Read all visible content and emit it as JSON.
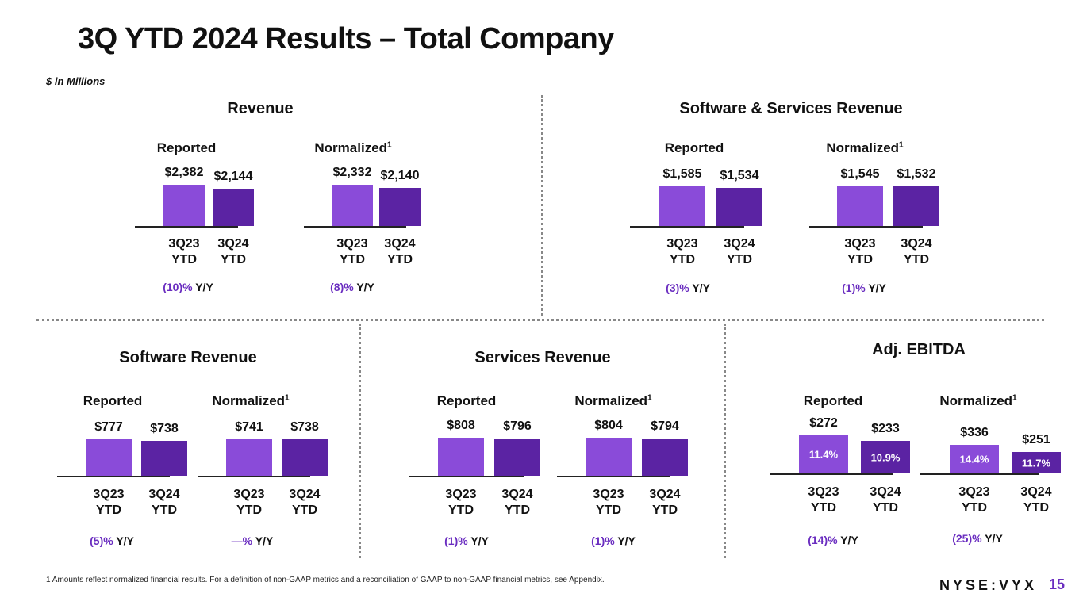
{
  "header": {
    "title": "3Q YTD 2024 Results – Total Company",
    "units": "$ in Millions"
  },
  "colors": {
    "prior": "#8a4bd9",
    "current": "#5b23a3",
    "accent": "#6a2dc0"
  },
  "chart_data": [
    {
      "type": "bar",
      "title": "Revenue",
      "panel": "Reported",
      "categories": [
        "3Q23 YTD",
        "3Q24 YTD"
      ],
      "values": [
        2382,
        2144
      ],
      "labels": [
        "$2,382",
        "$2,144"
      ],
      "yoy_value": "(10)%",
      "yoy_suffix": "Y/Y"
    },
    {
      "type": "bar",
      "title": "Revenue",
      "panel": "Normalized",
      "footnote_ref": "1",
      "categories": [
        "3Q23 YTD",
        "3Q24 YTD"
      ],
      "values": [
        2332,
        2140
      ],
      "labels": [
        "$2,332",
        "$2,140"
      ],
      "yoy_value": "(8)%",
      "yoy_suffix": "Y/Y"
    },
    {
      "type": "bar",
      "title": "Software & Services Revenue",
      "panel": "Reported",
      "categories": [
        "3Q23 YTD",
        "3Q24 YTD"
      ],
      "values": [
        1585,
        1534
      ],
      "labels": [
        "$1,585",
        "$1,534"
      ],
      "yoy_value": "(3)%",
      "yoy_suffix": "Y/Y"
    },
    {
      "type": "bar",
      "title": "Software & Services Revenue",
      "panel": "Normalized",
      "footnote_ref": "1",
      "categories": [
        "3Q23 YTD",
        "3Q24 YTD"
      ],
      "values": [
        1545,
        1532
      ],
      "labels": [
        "$1,545",
        "$1,532"
      ],
      "yoy_value": "(1)%",
      "yoy_suffix": "Y/Y"
    },
    {
      "type": "bar",
      "title": "Software Revenue",
      "panel": "Reported",
      "categories": [
        "3Q23 YTD",
        "3Q24 YTD"
      ],
      "values": [
        777,
        738
      ],
      "labels": [
        "$777",
        "$738"
      ],
      "yoy_value": "(5)%",
      "yoy_suffix": "Y/Y"
    },
    {
      "type": "bar",
      "title": "Software Revenue",
      "panel": "Normalized",
      "footnote_ref": "1",
      "categories": [
        "3Q23 YTD",
        "3Q24 YTD"
      ],
      "values": [
        741,
        738
      ],
      "labels": [
        "$741",
        "$738"
      ],
      "yoy_value": "—%",
      "yoy_suffix": "Y/Y"
    },
    {
      "type": "bar",
      "title": "Services Revenue",
      "panel": "Reported",
      "categories": [
        "3Q23 YTD",
        "3Q24 YTD"
      ],
      "values": [
        808,
        796
      ],
      "labels": [
        "$808",
        "$796"
      ],
      "yoy_value": "(1)%",
      "yoy_suffix": "Y/Y"
    },
    {
      "type": "bar",
      "title": "Services Revenue",
      "panel": "Normalized",
      "footnote_ref": "1",
      "categories": [
        "3Q23 YTD",
        "3Q24 YTD"
      ],
      "values": [
        804,
        794
      ],
      "labels": [
        "$804",
        "$794"
      ],
      "yoy_value": "(1)%",
      "yoy_suffix": "Y/Y"
    },
    {
      "type": "bar",
      "title": "Adj. EBITDA",
      "panel": "Reported",
      "categories": [
        "3Q23 YTD",
        "3Q24 YTD"
      ],
      "values": [
        272,
        233
      ],
      "labels": [
        "$272",
        "$233"
      ],
      "margins": [
        "11.4%",
        "10.9%"
      ],
      "yoy_value": "(14)%",
      "yoy_suffix": "Y/Y"
    },
    {
      "type": "bar",
      "title": "Adj. EBITDA",
      "panel": "Normalized",
      "footnote_ref": "1",
      "categories": [
        "3Q23 YTD",
        "3Q24 YTD"
      ],
      "values": [
        336,
        251
      ],
      "labels": [
        "$336",
        "$251"
      ],
      "margins": [
        "14.4%",
        "11.7%"
      ],
      "yoy_value": "(25)%",
      "yoy_suffix": "Y/Y"
    }
  ],
  "sections": [
    "Revenue",
    "Software & Services Revenue",
    "Software Revenue",
    "Services Revenue",
    "Adj. EBITDA"
  ],
  "footer": {
    "footnote": "1 Amounts reflect normalized financial results. For a definition of non-GAAP metrics and a reconciliation of GAAP to non-GAAP financial metrics, see Appendix.",
    "brand": "NYSE:VYX",
    "page": "15"
  }
}
